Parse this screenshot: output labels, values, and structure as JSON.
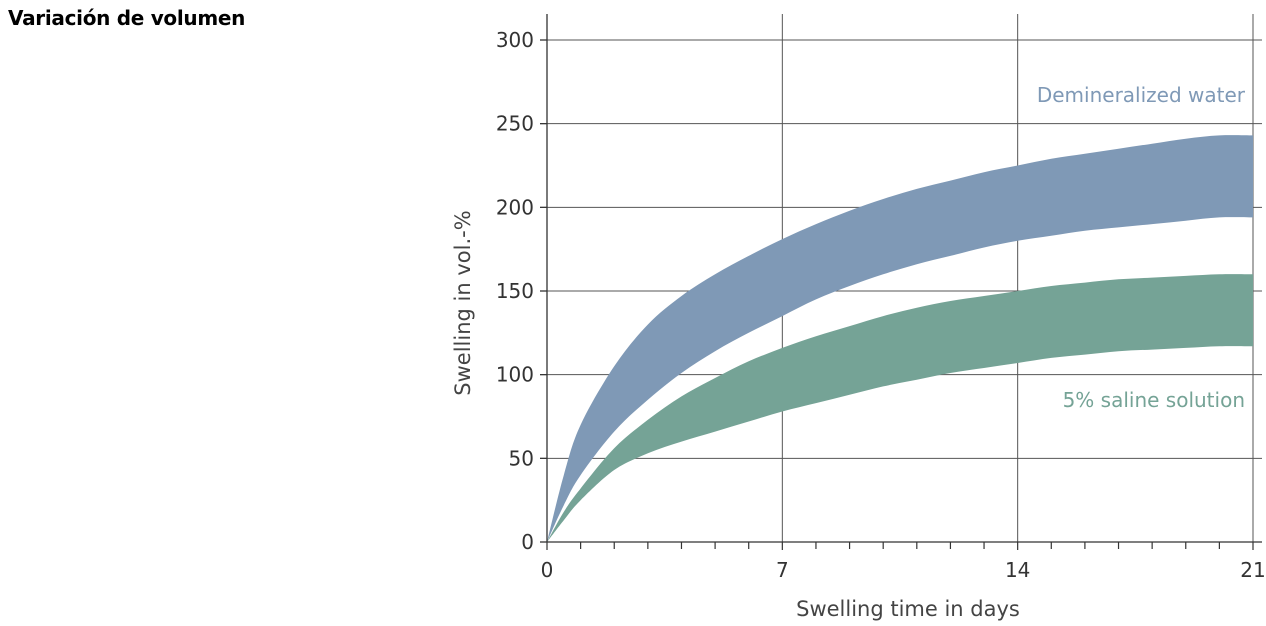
{
  "page": {
    "title": "Variación de volumen"
  },
  "chart_data": {
    "type": "area",
    "title": "",
    "xlabel": "Swelling time in days",
    "ylabel": "Swelling in vol.-%",
    "xlim": [
      0,
      21
    ],
    "ylim": [
      0,
      300
    ],
    "x_ticks": [
      0,
      7,
      14,
      21
    ],
    "y_ticks": [
      0,
      50,
      100,
      150,
      200,
      250,
      300
    ],
    "x_minor_step": 1,
    "grid": true,
    "series": [
      {
        "name": "Demineralized water",
        "color": "#7f99b6",
        "x": [
          0,
          0.5,
          1,
          2,
          3,
          4,
          5,
          6,
          7,
          8,
          9,
          10,
          11,
          12,
          13,
          14,
          15,
          16,
          17,
          18,
          19,
          20,
          21
        ],
        "upper": [
          0,
          40,
          70,
          105,
          130,
          147,
          160,
          171,
          181,
          190,
          198,
          205,
          211,
          216,
          221,
          225,
          229,
          232,
          235,
          238,
          241,
          243,
          243
        ],
        "lower": [
          0,
          22,
          40,
          66,
          85,
          101,
          114,
          125,
          135,
          145,
          153,
          160,
          166,
          171,
          176,
          180,
          183,
          186,
          188,
          190,
          192,
          194,
          194
        ]
      },
      {
        "name": "5% saline solution",
        "color": "#75a396",
        "x": [
          0,
          0.5,
          1,
          2,
          3,
          4,
          5,
          6,
          7,
          8,
          9,
          10,
          11,
          12,
          13,
          14,
          15,
          16,
          17,
          18,
          19,
          20,
          21
        ],
        "upper": [
          0,
          18,
          32,
          56,
          73,
          87,
          98,
          108,
          116,
          123,
          129,
          135,
          140,
          144,
          147,
          150,
          153,
          155,
          157,
          158,
          159,
          160,
          160
        ],
        "lower": [
          0,
          13,
          25,
          43,
          53,
          60,
          66,
          72,
          78,
          83,
          88,
          93,
          97,
          101,
          104,
          107,
          110,
          112,
          114,
          115,
          116,
          117,
          117
        ]
      }
    ],
    "annotations": [
      {
        "text": "Demineralized water",
        "x": 21,
        "y": 267,
        "color": "#7f99b6"
      },
      {
        "text": "5% saline solution",
        "x": 21,
        "y": 85,
        "color": "#75a396"
      }
    ]
  }
}
